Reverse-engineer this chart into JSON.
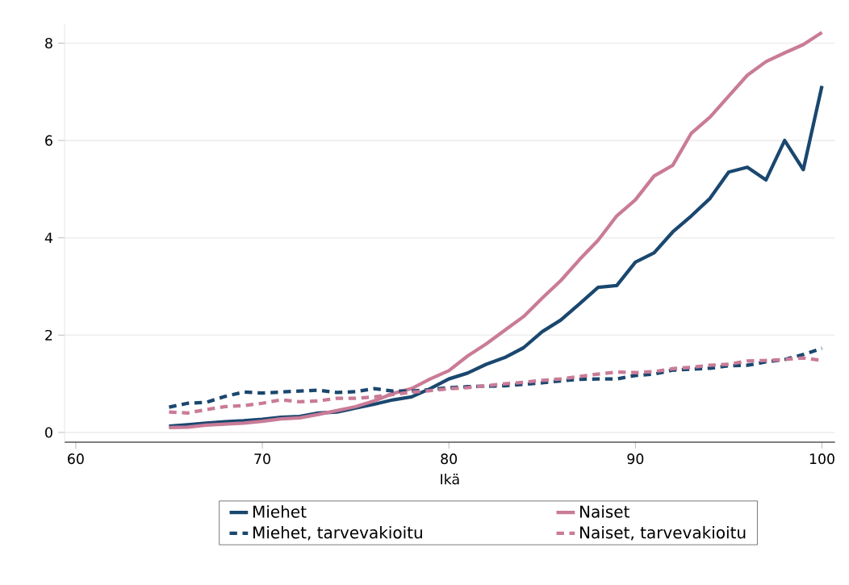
{
  "chart_data": {
    "type": "line",
    "xlabel": "Ikä",
    "x": [
      65,
      66,
      67,
      68,
      69,
      70,
      71,
      72,
      73,
      74,
      75,
      76,
      77,
      78,
      79,
      80,
      81,
      82,
      83,
      84,
      85,
      86,
      87,
      88,
      89,
      90,
      91,
      92,
      93,
      94,
      95,
      96,
      97,
      98,
      99,
      100
    ],
    "series": [
      {
        "name": "Miehet",
        "color": "#1a476f",
        "line_style": "solid",
        "values": [
          0.13,
          0.16,
          0.19,
          0.22,
          0.24,
          0.27,
          0.31,
          0.33,
          0.4,
          0.42,
          0.5,
          0.58,
          0.67,
          0.73,
          0.9,
          1.1,
          1.22,
          1.4,
          1.54,
          1.74,
          2.07,
          2.31,
          2.64,
          2.98,
          3.02,
          3.5,
          3.69,
          4.12,
          4.45,
          4.81,
          5.35,
          5.45,
          5.19,
          6.0,
          5.4,
          7.12
        ]
      },
      {
        "name": "Naiset",
        "color": "#c97b97",
        "line_style": "solid",
        "values": [
          0.1,
          0.11,
          0.15,
          0.17,
          0.19,
          0.23,
          0.28,
          0.3,
          0.37,
          0.45,
          0.53,
          0.65,
          0.8,
          0.9,
          1.1,
          1.27,
          1.57,
          1.82,
          2.1,
          2.38,
          2.76,
          3.12,
          3.55,
          3.95,
          4.45,
          4.78,
          5.27,
          5.49,
          6.15,
          6.48,
          6.91,
          7.34,
          7.62,
          7.8,
          7.97,
          8.22
        ]
      },
      {
        "name": "Miehet, tarvevakioitu",
        "color": "#1a476f",
        "line_style": "dashed",
        "values": [
          0.52,
          0.6,
          0.62,
          0.74,
          0.83,
          0.81,
          0.83,
          0.85,
          0.87,
          0.82,
          0.84,
          0.9,
          0.85,
          0.85,
          0.88,
          0.92,
          0.94,
          0.95,
          0.96,
          0.99,
          1.02,
          1.06,
          1.09,
          1.1,
          1.1,
          1.17,
          1.2,
          1.28,
          1.3,
          1.32,
          1.37,
          1.38,
          1.45,
          1.5,
          1.6,
          1.73
        ]
      },
      {
        "name": "Naiset, tarvevakioitu",
        "color": "#c97b97",
        "line_style": "dashed",
        "values": [
          0.42,
          0.4,
          0.47,
          0.53,
          0.55,
          0.6,
          0.67,
          0.63,
          0.65,
          0.7,
          0.7,
          0.73,
          0.78,
          0.83,
          0.86,
          0.9,
          0.92,
          0.96,
          1.0,
          1.03,
          1.07,
          1.1,
          1.15,
          1.2,
          1.24,
          1.23,
          1.25,
          1.31,
          1.34,
          1.38,
          1.4,
          1.47,
          1.48,
          1.5,
          1.53,
          1.48
        ]
      }
    ],
    "xlim": [
      59.4,
      100.7
    ],
    "ylim": [
      -0.2,
      8.4
    ],
    "xticks": [
      60,
      70,
      80,
      90,
      100
    ],
    "yticks": [
      0,
      2,
      4,
      6,
      8
    ],
    "grid": "y",
    "legend": "bottom",
    "marker": "none"
  }
}
